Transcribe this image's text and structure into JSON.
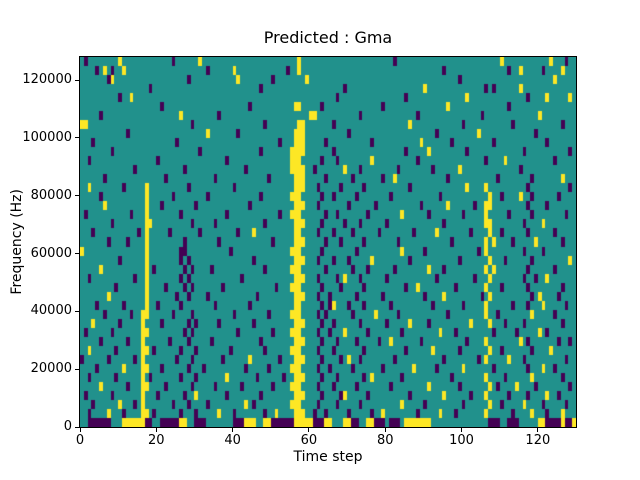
{
  "figure": {
    "title": "Predicted : Gma",
    "xlabel": "Time step",
    "ylabel": "Frequency (Hz)",
    "background": "#ffffff"
  },
  "chart_data": {
    "type": "heatmap",
    "title": "Predicted : Gma",
    "xlabel": "Time step",
    "ylabel": "Frequency (Hz)",
    "x_range": [
      0,
      130
    ],
    "y_range": [
      0,
      128000
    ],
    "xticks": [
      0,
      20,
      40,
      60,
      80,
      100,
      120
    ],
    "yticks": [
      0,
      20000,
      40000,
      60000,
      80000,
      100000,
      120000
    ],
    "n_time_steps": 130,
    "n_freq_bins": 41,
    "colors": {
      "mid": "#21918c",
      "low": "#440154",
      "high": "#fde725"
    },
    "legend": "none",
    "grid": "off",
    "cells_note": "rows listed top (highest frequency) to bottom (0 Hz); d = dark-purple cell columns, y = yellow cell columns; all other cells teal",
    "cells": [
      {
        "d": [
          1,
          24,
          82,
          127
        ],
        "y": [
          10,
          31,
          57,
          110,
          123
        ]
      },
      {
        "d": [
          4,
          8,
          33,
          54,
          95,
          112,
          121
        ],
        "y": [
          6,
          11,
          40,
          57,
          115,
          126
        ]
      },
      {
        "d": [
          7,
          28,
          50,
          99
        ],
        "y": [
          8,
          41,
          59,
          124
        ]
      },
      {
        "d": [
          18,
          47,
          69,
          106,
          108
        ],
        "y": [
          90,
          115
        ]
      },
      {
        "d": [
          10,
          67,
          85,
          117
        ],
        "y": [
          13,
          101,
          122,
          128
        ]
      },
      {
        "d": [
          21,
          44,
          63,
          79,
          112
        ],
        "y": [
          56,
          57,
          96
        ]
      },
      {
        "d": [
          5,
          36,
          73,
          88,
          105
        ],
        "y": [
          26,
          60,
          61,
          120
        ]
      },
      {
        "d": [
          29,
          48,
          66,
          100,
          113,
          126
        ],
        "y": [
          0,
          1,
          57,
          58,
          86
        ]
      },
      {
        "d": [
          12,
          41,
          70,
          93,
          119
        ],
        "y": [
          33,
          56,
          57,
          58,
          104
        ]
      },
      {
        "d": [
          3,
          25,
          52,
          64,
          76,
          97,
          108,
          122
        ],
        "y": [
          56,
          57,
          58,
          89
        ]
      },
      {
        "d": [
          8,
          31,
          47,
          66,
          85,
          101,
          116,
          128
        ],
        "y": [
          55,
          56,
          57,
          58,
          91
        ]
      },
      {
        "d": [
          2,
          20,
          38,
          63,
          67,
          88,
          106,
          124
        ],
        "y": [
          55,
          56,
          57,
          76,
          111
        ]
      },
      {
        "d": [
          14,
          27,
          43,
          61,
          73,
          83,
          92,
          115
        ],
        "y": [
          55,
          56,
          57,
          58,
          69,
          99
        ]
      },
      {
        "d": [
          6,
          22,
          35,
          49,
          64,
          71,
          79,
          96,
          109,
          118
        ],
        "y": [
          56,
          57,
          58,
          82,
          126
        ]
      },
      {
        "d": [
          11,
          28,
          40,
          62,
          68,
          74,
          86,
          117,
          128
        ],
        "y": [
          2,
          17,
          56,
          57,
          58,
          101,
          106
        ]
      },
      {
        "d": [
          5,
          24,
          33,
          47,
          63,
          66,
          72,
          81,
          94,
          110,
          118,
          125
        ],
        "y": [
          17,
          55,
          56,
          57,
          107,
          115
        ]
      },
      {
        "d": [
          21,
          30,
          44,
          62,
          70,
          77,
          89,
          103,
          117,
          122
        ],
        "y": [
          6,
          17,
          56,
          57,
          58,
          96,
          106,
          107
        ]
      },
      {
        "d": [
          1,
          13,
          26,
          38,
          52,
          64,
          67,
          75,
          91,
          100,
          112,
          118,
          127
        ],
        "y": [
          17,
          55,
          56,
          57,
          84,
          106
        ]
      },
      {
        "d": [
          8,
          29,
          35,
          48,
          63,
          69,
          73,
          80,
          95,
          116
        ],
        "y": [
          17,
          18,
          56,
          57,
          58,
          106,
          107,
          121
        ]
      },
      {
        "d": [
          3,
          15,
          23,
          31,
          41,
          62,
          66,
          71,
          78,
          87,
          102,
          110,
          117,
          124
        ],
        "y": [
          17,
          45,
          56,
          57,
          93,
          107
        ]
      },
      {
        "d": [
          7,
          12,
          27,
          36,
          50,
          64,
          68,
          74,
          83,
          97,
          113,
          126
        ],
        "y": [
          17,
          56,
          57,
          58,
          106,
          108,
          119
        ]
      },
      {
        "d": [
          26,
          27,
          39,
          63,
          72,
          90,
          104,
          116,
          121
        ],
        "y": [
          0,
          17,
          55,
          56,
          57,
          84,
          106
        ]
      },
      {
        "d": [
          10,
          26,
          28,
          45,
          62,
          66,
          70,
          86,
          99,
          111,
          118
        ],
        "y": [
          17,
          56,
          57,
          58,
          76,
          107,
          128
        ]
      },
      {
        "d": [
          19,
          27,
          29,
          34,
          48,
          64,
          71,
          75,
          82,
          95,
          117,
          124
        ],
        "y": [
          5,
          17,
          55,
          56,
          57,
          91,
          106,
          108
        ]
      },
      {
        "d": [
          2,
          14,
          26,
          28,
          42,
          62,
          67,
          73,
          80,
          93,
          103,
          116,
          119
        ],
        "y": [
          17,
          56,
          57,
          58,
          69,
          107,
          122
        ]
      },
      {
        "d": [
          9,
          22,
          27,
          29,
          37,
          51,
          63,
          68,
          74,
          85,
          98,
          110,
          117,
          126
        ],
        "y": [
          17,
          55,
          56,
          57,
          88,
          106
        ]
      },
      {
        "d": [
          25,
          28,
          33,
          46,
          62,
          65,
          72,
          79,
          90,
          105,
          118,
          125
        ],
        "y": [
          7,
          17,
          56,
          57,
          58,
          95,
          107,
          120
        ]
      },
      {
        "d": [
          4,
          11,
          20,
          26,
          35,
          44,
          63,
          65,
          70,
          74,
          81,
          92,
          100,
          113,
          117,
          127
        ],
        "y": [
          17,
          56,
          57,
          66,
          106,
          121
        ]
      },
      {
        "d": [
          6,
          13,
          24,
          29,
          40,
          49,
          62,
          64,
          71,
          83,
          96,
          109,
          124
        ],
        "y": [
          16,
          17,
          55,
          56,
          57,
          77,
          106,
          118
        ]
      },
      {
        "d": [
          10,
          21,
          28,
          30,
          36,
          45,
          63,
          66,
          73,
          80,
          91,
          111,
          116,
          126
        ],
        "y": [
          3,
          16,
          56,
          57,
          58,
          86,
          102,
          107
        ]
      },
      {
        "d": [
          1,
          8,
          27,
          29,
          41,
          50,
          62,
          65,
          75,
          84,
          98,
          108,
          114,
          122
        ],
        "y": [
          16,
          17,
          55,
          56,
          57,
          69,
          94,
          120
        ]
      },
      {
        "d": [
          5,
          12,
          23,
          28,
          34,
          47,
          63,
          67,
          72,
          78,
          89,
          101,
          117,
          125,
          128
        ],
        "y": [
          16,
          56,
          57,
          58,
          81,
          106,
          115
        ]
      },
      {
        "d": [
          9,
          19,
          26,
          30,
          39,
          48,
          62,
          66,
          74,
          85,
          99,
          110,
          118
        ],
        "y": [
          2,
          16,
          17,
          55,
          56,
          57,
          92,
          107,
          123
        ]
      },
      {
        "d": [
          0,
          7,
          14,
          25,
          29,
          37,
          52,
          63,
          68,
          73,
          82,
          95,
          104,
          116,
          127
        ],
        "y": [
          16,
          44,
          56,
          57,
          58,
          70,
          106,
          112
        ]
      },
      {
        "d": [
          4,
          21,
          28,
          32,
          43,
          49,
          62,
          65,
          71,
          79,
          93,
          108,
          117,
          124
        ],
        "y": [
          11,
          16,
          17,
          55,
          56,
          57,
          87,
          100,
          121
        ]
      },
      {
        "d": [
          2,
          9,
          18,
          26,
          30,
          46,
          53,
          63,
          67,
          74,
          84,
          97,
          111,
          126
        ],
        "y": [
          16,
          38,
          56,
          57,
          58,
          76,
          106,
          118
        ]
      },
      {
        "d": [
          12,
          22,
          29,
          35,
          42,
          50,
          62,
          66,
          72,
          81,
          99,
          109,
          119,
          128
        ],
        "y": [
          5,
          16,
          17,
          55,
          56,
          57,
          91,
          107,
          114
        ]
      },
      {
        "d": [
          1,
          8,
          20,
          27,
          38,
          47,
          63,
          68,
          75,
          86,
          102,
          112,
          117,
          125
        ],
        "y": [
          16,
          30,
          56,
          57,
          58,
          69,
          95,
          106,
          122
        ]
      },
      {
        "d": [
          3,
          14,
          24,
          28,
          33,
          45,
          62,
          67,
          73,
          90,
          100,
          110,
          121,
          127
        ],
        "y": [
          10,
          16,
          43,
          55,
          56,
          57,
          84,
          107,
          116
        ]
      },
      {
        "d": [
          2,
          11,
          19,
          26,
          30,
          40,
          48,
          61,
          64,
          70,
          76,
          88,
          98,
          113,
          122
        ],
        "y": [
          7,
          16,
          17,
          36,
          51,
          56,
          57,
          58,
          79,
          94,
          106,
          118,
          126
        ]
      },
      {
        "d": [
          2,
          3,
          4,
          5,
          6,
          7,
          17,
          18,
          21,
          22,
          23,
          24,
          25,
          30,
          31,
          32,
          40,
          41,
          42,
          50,
          51,
          52,
          53,
          54,
          55,
          61,
          62,
          63,
          71,
          72,
          77,
          78,
          79,
          81,
          82,
          83,
          107,
          108,
          109,
          112,
          113,
          114,
          122,
          123,
          124,
          125,
          127,
          128
        ],
        "y": [
          11,
          12,
          13,
          14,
          15,
          16,
          26,
          27,
          43,
          44,
          45,
          48,
          49,
          56,
          57,
          58,
          59,
          60,
          64,
          65,
          69,
          70,
          75,
          76,
          85,
          86,
          87,
          88,
          89,
          90,
          91,
          120,
          121,
          126,
          129
        ]
      }
    ]
  }
}
